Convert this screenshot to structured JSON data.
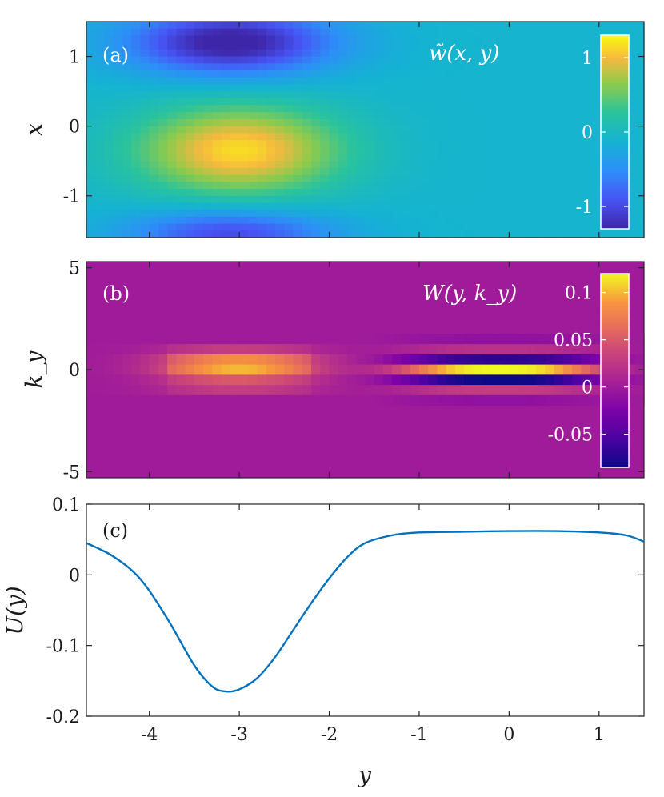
{
  "chart_data": [
    {
      "panel": "(a)",
      "type": "heatmap",
      "title": "w̃(x, y)",
      "xlabel": "y",
      "ylabel": "x",
      "xlim": [
        -4.7,
        1.5
      ],
      "ylim": [
        -1.6,
        1.5
      ],
      "y_ticks": [
        1,
        0,
        -1
      ],
      "y_tick_labels": [
        "1",
        "0",
        "-1"
      ],
      "colorbar": {
        "range": [
          -1.3,
          1.3
        ],
        "ticks": [
          1,
          0,
          -1
        ],
        "tick_labels": [
          "1",
          "0",
          "-1"
        ],
        "colormap": "parula"
      },
      "blobs": [
        {
          "y_center": -3.1,
          "x_center": 1.2,
          "sigma_y": 0.8,
          "sigma_x": 0.33,
          "amplitude": -1.3
        },
        {
          "y_center": -3.0,
          "x_center": -0.35,
          "sigma_y": 0.8,
          "sigma_x": 0.45,
          "amplitude": 1.25
        },
        {
          "y_center": -3.1,
          "x_center": -1.55,
          "sigma_y": 0.8,
          "sigma_x": 0.25,
          "amplitude": -0.9
        }
      ],
      "background": -0.1
    },
    {
      "panel": "(b)",
      "type": "heatmap",
      "title": "W(y, k_y)",
      "xlabel": "y",
      "ylabel": "k_y",
      "xlim": [
        -4.7,
        1.5
      ],
      "ylim": [
        -5.3,
        5.3
      ],
      "y_ticks": [
        5,
        0,
        -5
      ],
      "y_tick_labels": [
        "5",
        "0",
        "-5"
      ],
      "colorbar": {
        "range": [
          -0.085,
          0.12
        ],
        "ticks": [
          0.1,
          0.05,
          0,
          -0.05
        ],
        "tick_labels": [
          "0.1",
          "0.05",
          "0",
          "-0.05"
        ],
        "colormap": "plasma"
      },
      "k_rows": [
        {
          "k": 1.5,
          "left": 0.0,
          "right": -0.01
        },
        {
          "k": 1.0,
          "left": 0.03,
          "right": 0.02
        },
        {
          "k": 0.5,
          "left": 0.085,
          "right": -0.07
        },
        {
          "k": 0.0,
          "left": 0.1,
          "right": 0.12
        },
        {
          "k": -0.5,
          "left": 0.05,
          "right": -0.085
        },
        {
          "k": -1.0,
          "left": 0.03,
          "right": 0.03
        },
        {
          "k": -1.5,
          "left": 0.0,
          "right": -0.01
        }
      ],
      "left_center": -3.0,
      "right_center": -0.1
    },
    {
      "panel": "(c)",
      "type": "line",
      "xlabel": "y",
      "ylabel": "U(y)",
      "xlim": [
        -4.7,
        1.5
      ],
      "ylim": [
        -0.2,
        0.1
      ],
      "x_ticks": [
        -4,
        -3,
        -2,
        -1,
        0,
        1
      ],
      "x_tick_labels": [
        "-4",
        "-3",
        "-2",
        "-1",
        "0",
        "1"
      ],
      "y_ticks": [
        0.1,
        0,
        -0.1,
        -0.2
      ],
      "y_tick_labels": [
        "0.1",
        "0",
        "-0.1",
        "-0.2"
      ],
      "series": [
        {
          "name": "U(y)",
          "color": "#0072BD",
          "x": [
            -4.7,
            -4.4,
            -4.1,
            -3.8,
            -3.5,
            -3.3,
            -3.15,
            -3.0,
            -2.8,
            -2.6,
            -2.4,
            -2.2,
            -2.0,
            -1.8,
            -1.6,
            -1.3,
            -1.0,
            -0.5,
            0.0,
            0.5,
            1.0,
            1.3,
            1.5
          ],
          "y": [
            0.045,
            0.026,
            -0.006,
            -0.062,
            -0.128,
            -0.158,
            -0.165,
            -0.162,
            -0.146,
            -0.116,
            -0.078,
            -0.04,
            -0.005,
            0.025,
            0.045,
            0.056,
            0.06,
            0.061,
            0.062,
            0.062,
            0.06,
            0.056,
            0.047
          ]
        }
      ]
    }
  ]
}
